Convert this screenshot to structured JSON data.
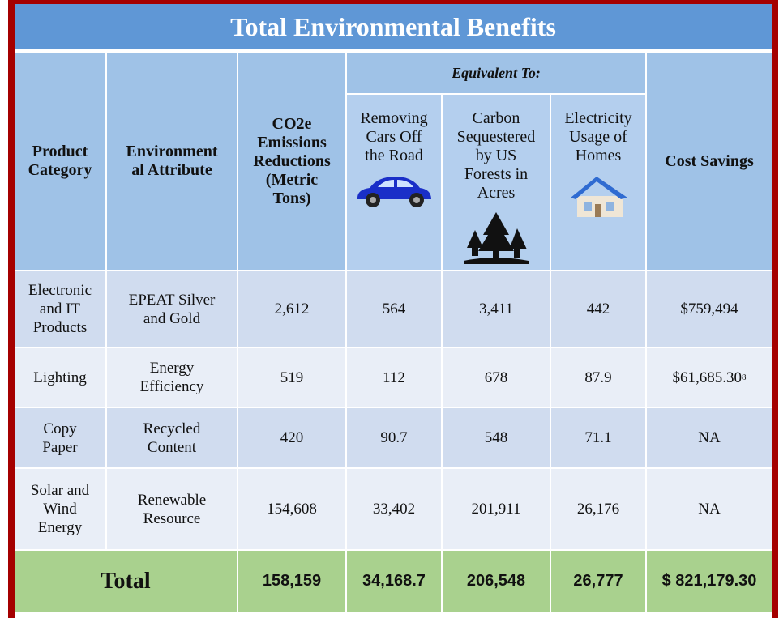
{
  "header": {
    "title": "Total Environmental Benefits"
  },
  "table": {
    "columns": [
      "Product\nCategory",
      "Environment\nal Attribute",
      "CO2e\nEmissions\nReductions\n(Metric\nTons)",
      "Removing\nCars Off\nthe Road",
      "Carbon\nSequestered\nby US\nForests in\nAcres",
      "Electricity\nUsage of\nHomes",
      "Cost Savings"
    ],
    "group_header": "Equivalent To:",
    "rows": [
      [
        "Electronic\nand IT\nProducts",
        "EPEAT Silver\nand Gold",
        "2,612",
        "564",
        "3,411",
        "442",
        "$759,494"
      ],
      [
        "Lighting",
        "Energy\nEfficiency",
        "519",
        "112",
        "678",
        "87.9",
        {
          "text": "$61,685.30",
          "footnote": "8"
        }
      ],
      [
        "Copy\nPaper",
        "Recycled\nContent",
        "420",
        "90.7",
        "548",
        "71.1",
        "NA"
      ],
      [
        "Solar and\nWind\nEnergy",
        "Renewable\nResource",
        "154,608",
        "33,402",
        "201,911",
        "26,176",
        "NA"
      ]
    ],
    "total": {
      "label": "Total",
      "values": [
        "158,159",
        "34,168.7",
        "206,548",
        "26,777",
        "$ 821,179.30"
      ]
    }
  }
}
